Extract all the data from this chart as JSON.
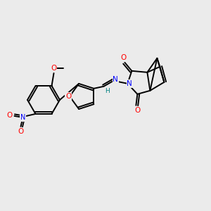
{
  "background_color": "#ebebeb",
  "bond_color": "#000000",
  "atom_colors": {
    "O": "#ff0000",
    "N": "#0000ff",
    "N_imine": "#008080",
    "C": "#000000"
  },
  "figsize": [
    3.0,
    3.0
  ],
  "dpi": 100
}
